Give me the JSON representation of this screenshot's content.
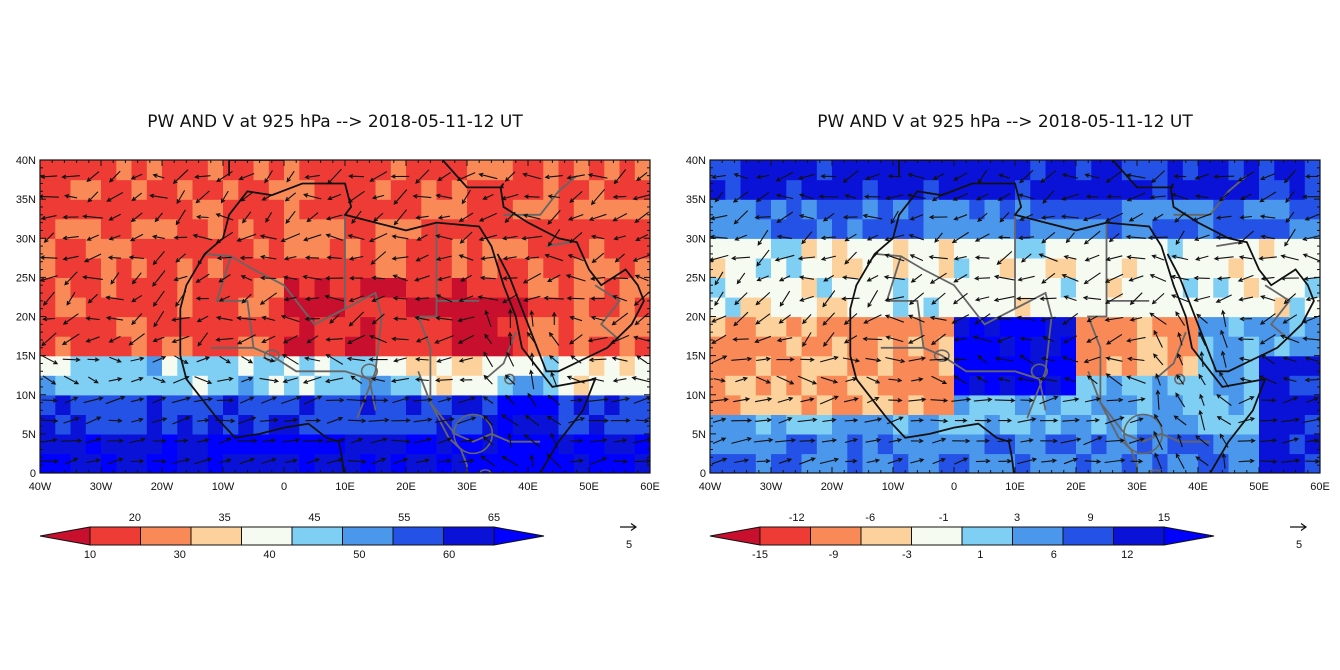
{
  "panels": [
    {
      "title": "PW AND V at 925 hPa  --> 2018-05-11-12 UT",
      "xticks": [
        "40W",
        "30W",
        "20W",
        "10W",
        "0",
        "10E",
        "20E",
        "30E",
        "40E",
        "50E",
        "60E"
      ],
      "yticks": [
        "0",
        "5N",
        "10N",
        "15N",
        "20N",
        "25N",
        "30N",
        "35N",
        "40N"
      ],
      "colorbar": {
        "colors": [
          "#c8102e",
          "#ef3b35",
          "#f98a58",
          "#fdd19b",
          "#f6fbf2",
          "#7fcff4",
          "#4a97ec",
          "#2451e6",
          "#0a12d8",
          "#0000ff"
        ],
        "labels_top": [
          "20",
          "35",
          "45",
          "55",
          "65"
        ],
        "labels_bottom": [
          "10",
          "30",
          "40",
          "50",
          "60"
        ]
      },
      "ref_vector": "5"
    },
    {
      "title": "PW AND V at 925 hPa  --> 2018-05-11-12 UT",
      "xticks": [
        "40W",
        "30W",
        "20W",
        "10W",
        "0",
        "10E",
        "20E",
        "30E",
        "40E",
        "50E",
        "60E"
      ],
      "yticks": [
        "0",
        "5N",
        "10N",
        "15N",
        "20N",
        "25N",
        "30N",
        "35N",
        "40N"
      ],
      "colorbar": {
        "colors": [
          "#c8102e",
          "#ef3b35",
          "#f98a58",
          "#fdd19b",
          "#f6fbf2",
          "#7fcff4",
          "#4a97ec",
          "#2451e6",
          "#0a12d8",
          "#0000ff"
        ],
        "labels_top": [
          "-12",
          "-6",
          "-1",
          "3",
          "9",
          "15"
        ],
        "labels_bottom": [
          "-15",
          "-9",
          "-3",
          "1",
          "6",
          "12"
        ]
      },
      "ref_vector": "5"
    }
  ]
}
